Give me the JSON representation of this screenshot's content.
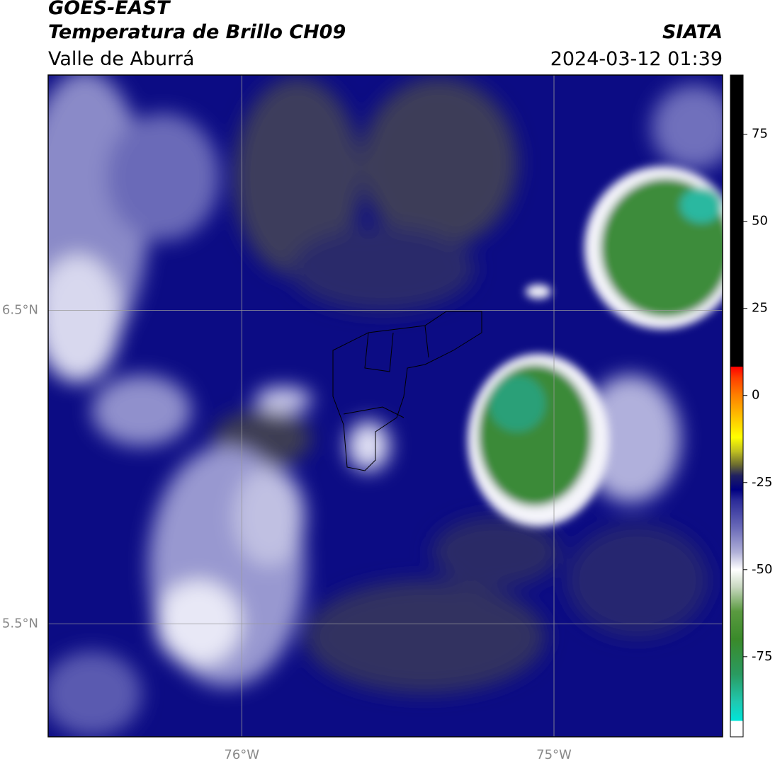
{
  "header": {
    "title": "GOES-EAST",
    "subtitle": "Temperatura de Brillo CH09",
    "region": "Valle de Aburrá",
    "source": "SIATA",
    "datetime": "2024-03-12 01:39"
  },
  "map": {
    "xlim": [
      -76.62,
      -74.46
    ],
    "ylim": [
      5.14,
      7.25
    ],
    "xticks": [
      {
        "value": -76,
        "label": "76°W"
      },
      {
        "value": -75,
        "label": "75°W"
      }
    ],
    "yticks": [
      {
        "value": 5.5,
        "label": "5.5°N"
      },
      {
        "value": 6.5,
        "label": "6.5°N"
      }
    ],
    "grid": true
  },
  "colorbar": {
    "lim": [
      -98,
      92
    ],
    "ticks": [
      -75,
      -50,
      -25,
      0,
      25,
      50,
      75
    ],
    "stops": [
      {
        "value": -98,
        "color": "#ffffff"
      },
      {
        "value": -93.4,
        "color": "#ffffff"
      },
      {
        "value": -93.4,
        "color": "#00e5d8"
      },
      {
        "value": -88,
        "color": "#20c8b0"
      },
      {
        "value": -80,
        "color": "#2a9a60"
      },
      {
        "value": -70,
        "color": "#3a8a2a"
      },
      {
        "value": -62,
        "color": "#5a9a40"
      },
      {
        "value": -55,
        "color": "#c8d8c0"
      },
      {
        "value": -50,
        "color": "#ffffff"
      },
      {
        "value": -45,
        "color": "#b0b0d8"
      },
      {
        "value": -38,
        "color": "#6a6ab8"
      },
      {
        "value": -30,
        "color": "#2a2a98"
      },
      {
        "value": -27,
        "color": "#000080"
      },
      {
        "value": -23,
        "color": "#202060"
      },
      {
        "value": -20,
        "color": "#6a6a30"
      },
      {
        "value": -16,
        "color": "#c0c020"
      },
      {
        "value": -12,
        "color": "#ffff00"
      },
      {
        "value": -6,
        "color": "#ffc000"
      },
      {
        "value": 0,
        "color": "#ff8000"
      },
      {
        "value": 5,
        "color": "#ff4000"
      },
      {
        "value": 8.3,
        "color": "#ff0000"
      },
      {
        "value": 8.3,
        "color": "#000000"
      },
      {
        "value": 92,
        "color": "#000000"
      }
    ]
  }
}
